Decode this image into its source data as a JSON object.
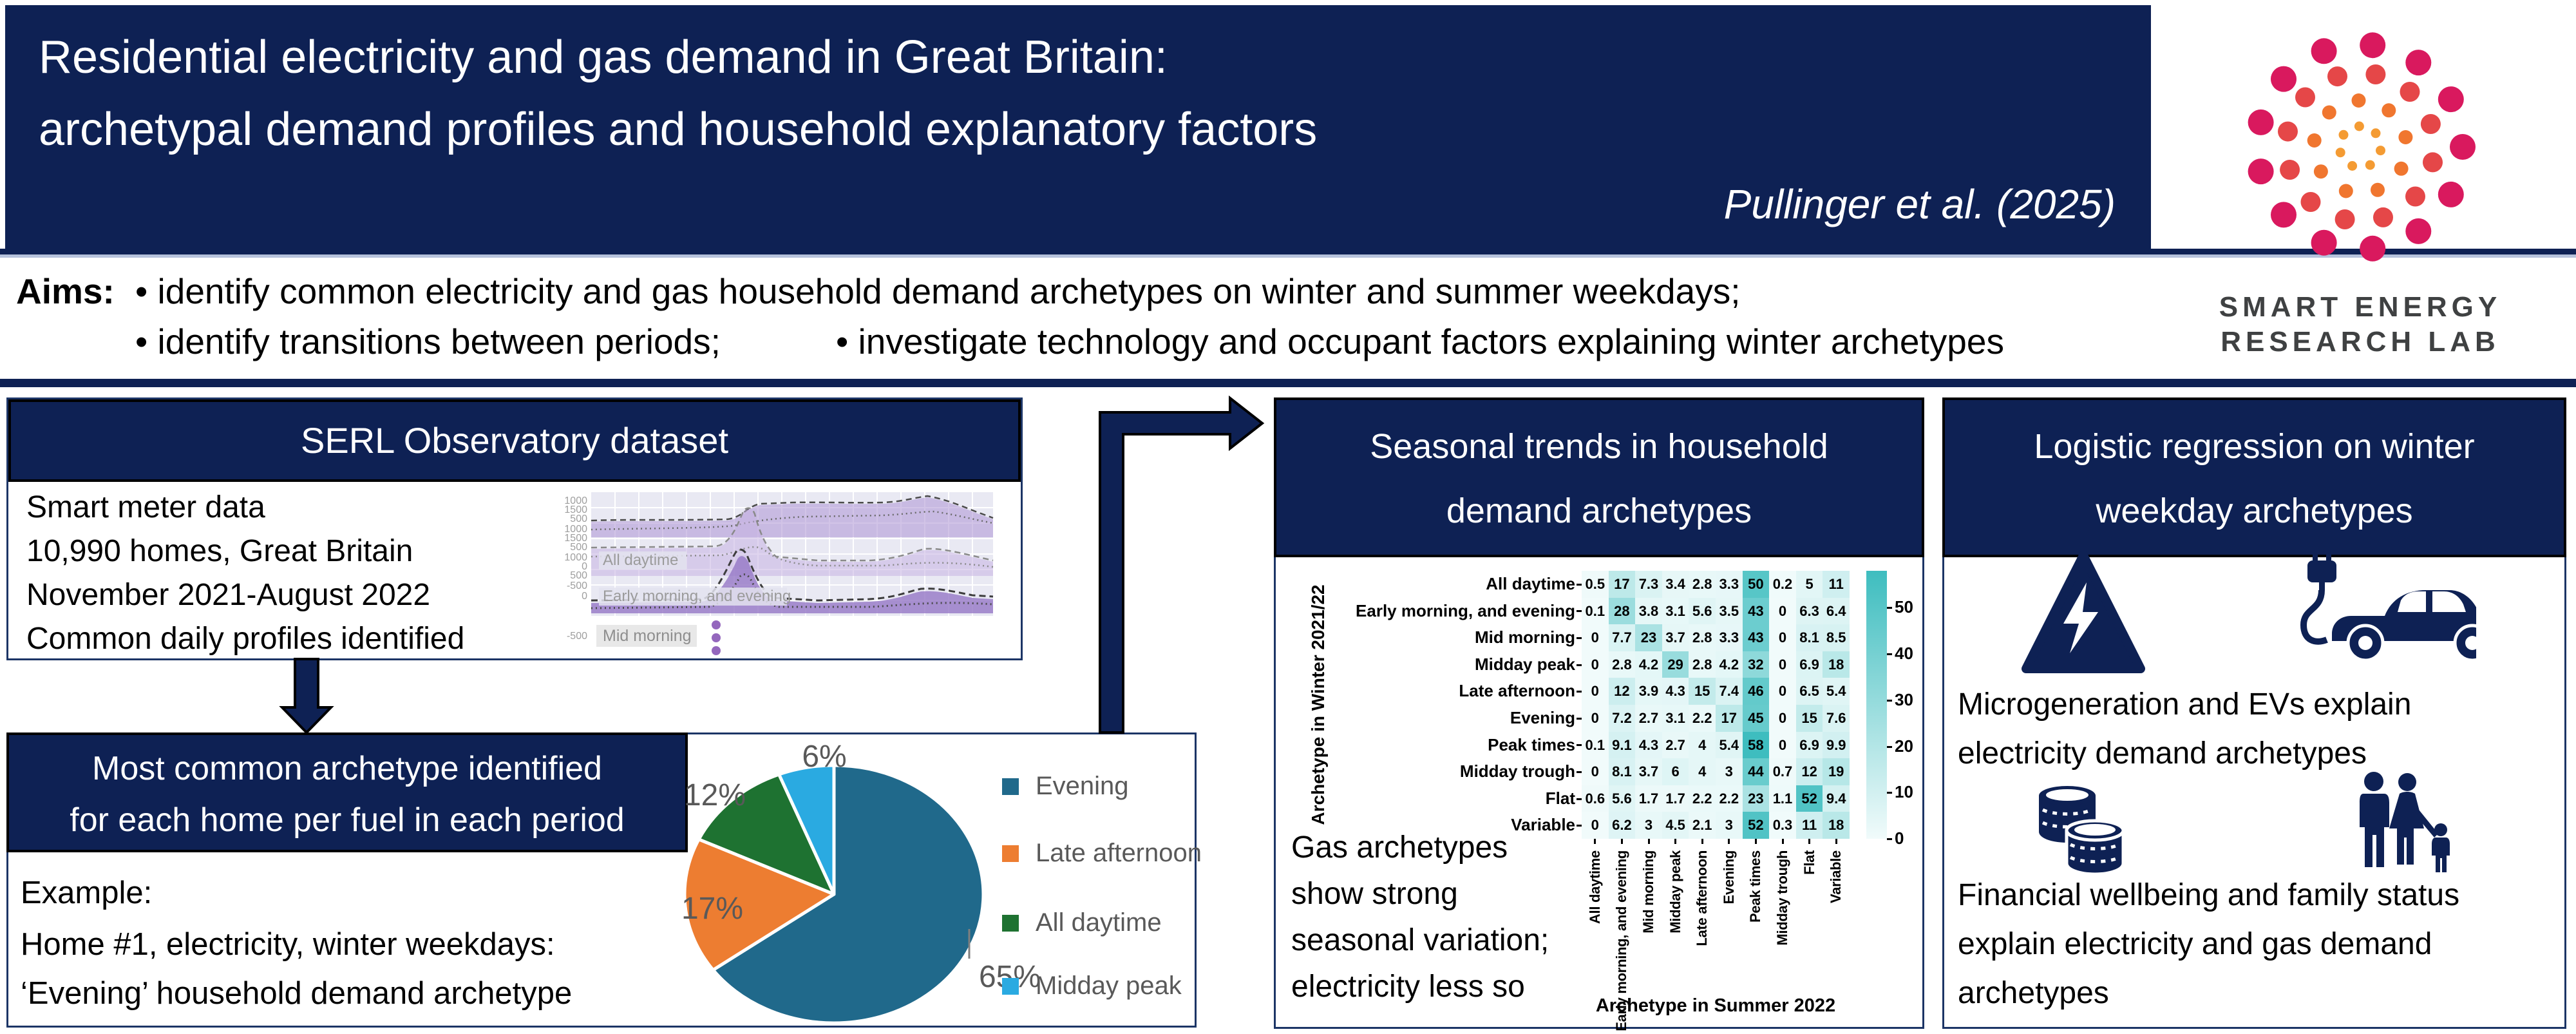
{
  "header": {
    "title_line1": "Residential electricity and gas demand in Great Britain:",
    "title_line2": "archetypal demand profiles and household explanatory factors",
    "attribution": "Pullinger et al. (2025)",
    "aims_label": "Aims:",
    "aims_bullet1": "• identify common electricity and gas household demand archetypes on winter and summer weekdays;",
    "aims_bullet2": "• identify transitions between periods;",
    "aims_bullet3": "• investigate technology and occupant factors explaining winter archetypes"
  },
  "logo": {
    "text_line1": "SMART ENERGY",
    "text_line2": "RESEARCH LAB",
    "ring_colors": [
      "#f49b33",
      "#f0762f",
      "#e54748",
      "#d9195e"
    ]
  },
  "left_panel": {
    "dataset_box": {
      "title": "SERL Observatory dataset",
      "lines": [
        "Smart meter data",
        "10,990 homes, Great Britain",
        "November 2021-August 2022",
        "Common daily profiles identified"
      ]
    },
    "archetype_box": {
      "title_line1": "Most common archetype identified",
      "title_line2": "for each home per fuel in each period",
      "example_lines": [
        "Example:",
        "Home #1, electricity, winter weekdays:",
        "‘Evening’ household demand archetype"
      ]
    }
  },
  "middle_panel": {
    "title_line1": "Seasonal trends in household",
    "title_line2": "demand archetypes",
    "note_lines": [
      "Gas archetypes",
      "show strong",
      "seasonal variation;",
      "electricity less so"
    ]
  },
  "right_panel": {
    "title_line1": "Logistic regression on winter",
    "title_line2": "weekday archetypes",
    "finding1_lines": [
      "Microgeneration and EVs explain",
      "electricity demand archetypes"
    ],
    "finding2_lines": [
      "Financial wellbeing and family status",
      "explain electricity and gas demand",
      "archetypes"
    ]
  },
  "colors": {
    "navy": "#0e2154",
    "box_border": "#1c3566",
    "light_rule": "#b6c2dc",
    "gray_text": "#595959",
    "logo_text": "#3f4142"
  },
  "chart_data": [
    {
      "type": "pie",
      "labels": [
        "Evening",
        "Late afternoon",
        "All daytime",
        "Midday peak"
      ],
      "values": [
        65,
        17,
        12,
        6
      ],
      "value_labels": [
        "65%",
        "17%",
        "12%",
        "6%"
      ],
      "colors": [
        "#20698b",
        "#ed7d31",
        "#1e7231",
        "#2aaae1"
      ],
      "legend_position": "right",
      "start_angle": "top",
      "direction": "clockwise"
    },
    {
      "type": "heatmap",
      "xlabel": "Archetype in Summer 2022",
      "ylabel": "Archetype in Winter 2021/22",
      "categories": [
        "All daytime",
        "Early morning, and evening",
        "Mid morning",
        "Midday peak",
        "Late afternoon",
        "Evening",
        "Peak times",
        "Midday trough",
        "Flat",
        "Variable"
      ],
      "rows": [
        "All daytime",
        "Early morning, and evening",
        "Mid morning",
        "Midday peak",
        "Late afternoon",
        "Evening",
        "Peak times",
        "Midday trough",
        "Flat",
        "Variable"
      ],
      "values": [
        [
          "0.5",
          "17",
          "7.3",
          "3.4",
          "2.8",
          "3.3",
          "50",
          "0.2",
          "5",
          "11"
        ],
        [
          "0.1",
          "28",
          "3.8",
          "3.1",
          "5.6",
          "3.5",
          "43",
          "0",
          "6.3",
          "6.4"
        ],
        [
          "0",
          "7.7",
          "23",
          "3.7",
          "2.8",
          "3.3",
          "43",
          "0",
          "8.1",
          "8.5"
        ],
        [
          "0",
          "2.8",
          "4.2",
          "29",
          "2.8",
          "4.2",
          "32",
          "0",
          "6.9",
          "18"
        ],
        [
          "0",
          "12",
          "3.9",
          "4.3",
          "15",
          "7.4",
          "46",
          "0",
          "6.5",
          "5.4"
        ],
        [
          "0",
          "7.2",
          "2.7",
          "3.1",
          "2.2",
          "17",
          "45",
          "0",
          "15",
          "7.6"
        ],
        [
          "0.1",
          "9.1",
          "4.3",
          "2.7",
          "4",
          "5.4",
          "58",
          "0",
          "6.9",
          "9.9"
        ],
        [
          "0",
          "8.1",
          "3.7",
          "6",
          "4",
          "3",
          "44",
          "0.7",
          "12",
          "19"
        ],
        [
          "0.6",
          "5.6",
          "1.7",
          "1.7",
          "2.2",
          "2.2",
          "23",
          "1.1",
          "52",
          "9.4"
        ],
        [
          "0",
          "6.2",
          "3",
          "4.5",
          "2.1",
          "3",
          "52",
          "0.3",
          "11",
          "18"
        ]
      ],
      "colorbar": {
        "ticks": [
          0,
          10,
          20,
          30,
          40,
          50
        ],
        "vmin": 0,
        "vmax": 58,
        "color_low": "#f1fbfb",
        "color_high": "#3ebdbf"
      }
    },
    {
      "type": "area",
      "title": "",
      "series_labels": [
        "All daytime",
        "Early morning, and evening",
        "Mid morning"
      ],
      "ytick_labels": [
        "1000",
        "1500",
        "500",
        "1000",
        "1500",
        "500",
        "1000",
        "0",
        "500",
        "-500",
        "0",
        "-500"
      ]
    }
  ]
}
